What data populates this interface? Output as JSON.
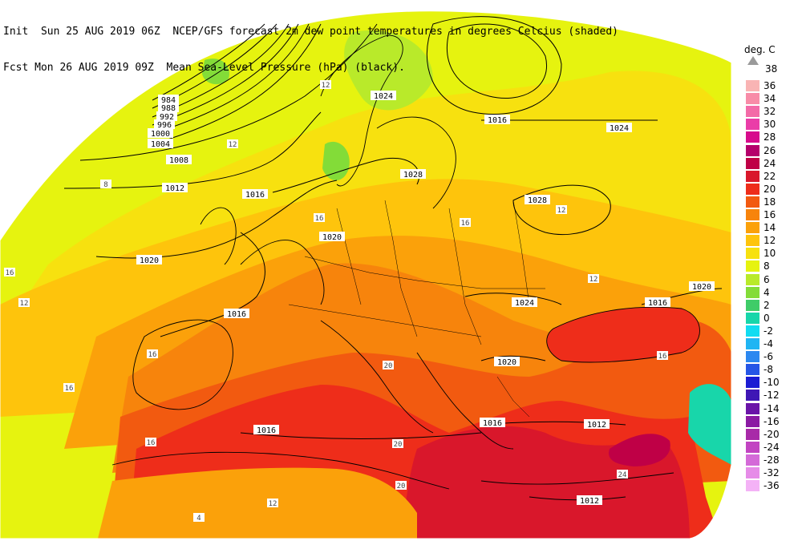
{
  "header": {
    "line1": "Init  Sun 25 AUG 2019 06Z  NCEP/GFS forecast 2m dew point temperatures in degrees Celcius (shaded)",
    "line2": "Fcst Mon 26 AUG 2019 09Z  Mean Sea-Level Pressure (hPa) (black)."
  },
  "legend": {
    "title": "deg. C",
    "top_label": "38",
    "items": [
      {
        "label": "36",
        "color": "#f9b4b4"
      },
      {
        "label": "34",
        "color": "#f88ca8"
      },
      {
        "label": "32",
        "color": "#f36aa8"
      },
      {
        "label": "30",
        "color": "#ea3da8"
      },
      {
        "label": "28",
        "color": "#d70c8c"
      },
      {
        "label": "26",
        "color": "#b5006b"
      },
      {
        "label": "24",
        "color": "#bf0046"
      },
      {
        "label": "22",
        "color": "#d9172b"
      },
      {
        "label": "20",
        "color": "#ee2d1a"
      },
      {
        "label": "18",
        "color": "#f25a10"
      },
      {
        "label": "16",
        "color": "#f7840c"
      },
      {
        "label": "14",
        "color": "#fba10a"
      },
      {
        "label": "12",
        "color": "#fec40c"
      },
      {
        "label": "10",
        "color": "#f7e10f"
      },
      {
        "label": "8",
        "color": "#e6f30f"
      },
      {
        "label": "6",
        "color": "#b9ea2a"
      },
      {
        "label": "4",
        "color": "#83dc38"
      },
      {
        "label": "2",
        "color": "#3fcc68"
      },
      {
        "label": "0",
        "color": "#18d6aa"
      },
      {
        "label": "-2",
        "color": "#12dcf1"
      },
      {
        "label": "-4",
        "color": "#20b5f3"
      },
      {
        "label": "-6",
        "color": "#2c88f0"
      },
      {
        "label": "-8",
        "color": "#2656e6"
      },
      {
        "label": "-10",
        "color": "#1b1cd3"
      },
      {
        "label": "-12",
        "color": "#3f17b5"
      },
      {
        "label": "-14",
        "color": "#6a14a8"
      },
      {
        "label": "-16",
        "color": "#8b1aa3"
      },
      {
        "label": "-20",
        "color": "#a82aa8"
      },
      {
        "label": "-24",
        "color": "#c244c2"
      },
      {
        "label": "-28",
        "color": "#d46ad8"
      },
      {
        "label": "-32",
        "color": "#e68ce8"
      },
      {
        "label": "-36",
        "color": "#f4b2f6"
      }
    ]
  },
  "isobar_labels": [
    "984",
    "988",
    "992",
    "996",
    "1000",
    "1004",
    "1008",
    "1012",
    "1016",
    "1020",
    "1024",
    "1028",
    "1016",
    "1020",
    "1024",
    "1028",
    "1020",
    "1024",
    "1016",
    "1020",
    "1016",
    "1012",
    "1016",
    "1012",
    "1016",
    "1020",
    "1024"
  ],
  "dewpoint_labels": [
    "8",
    "12",
    "16",
    "20",
    "24",
    "4"
  ]
}
